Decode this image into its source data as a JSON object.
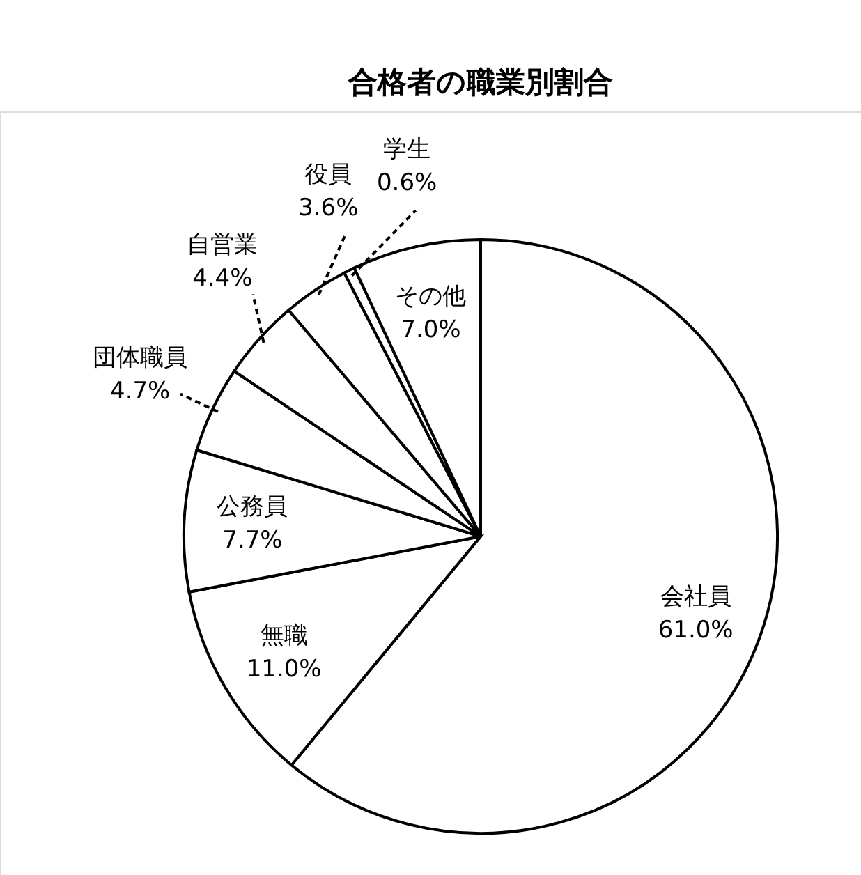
{
  "chart_data": {
    "type": "pie",
    "title": "合格者の職業別割合",
    "categories": [
      "会社員",
      "無職",
      "公務員",
      "団体職員",
      "自営業",
      "役員",
      "学生",
      "その他"
    ],
    "values": [
      61.0,
      11.0,
      7.7,
      4.7,
      4.4,
      3.6,
      0.6,
      7.0
    ],
    "colors": [
      "#ffffff",
      "#ffffff",
      "#ffffff",
      "#ffffff",
      "#ffffff",
      "#ffffff",
      "#ffffff",
      "#ffffff"
    ],
    "value_labels": [
      "61.0%",
      "11.0%",
      "7.7%",
      "4.7%",
      "4.4%",
      "3.6%",
      "0.6%",
      "7.0%"
    ]
  }
}
